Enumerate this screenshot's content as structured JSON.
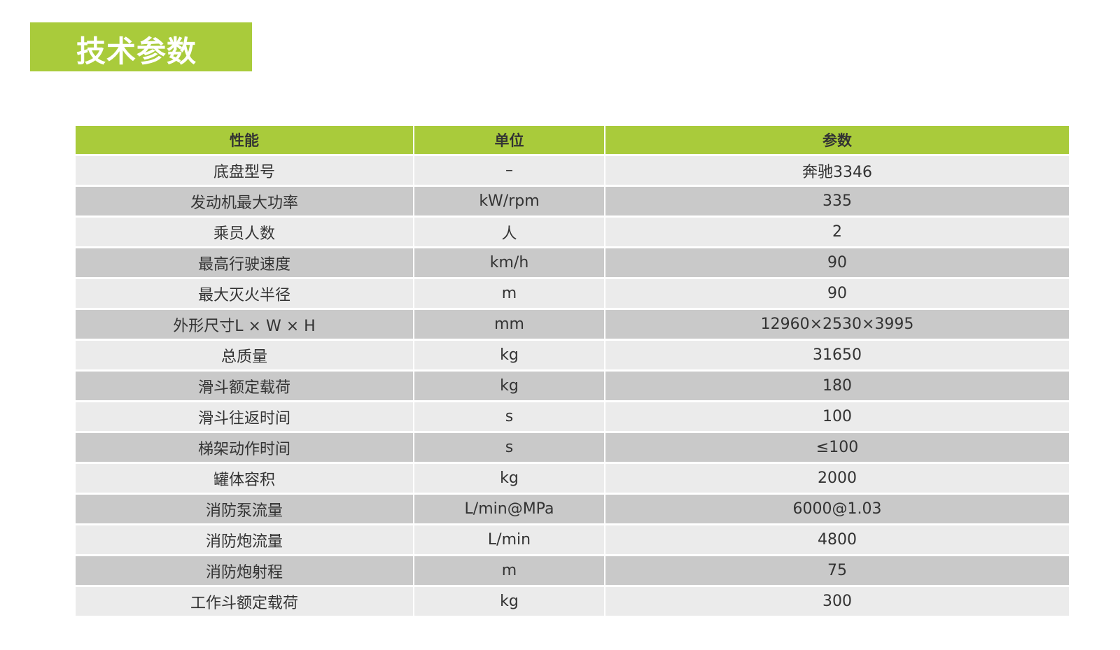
{
  "title": "技术参数",
  "colors": {
    "accent": "#a9cb3b",
    "row_light": "#ebebeb",
    "row_dark": "#c9c9c9"
  },
  "table": {
    "headers": [
      "性能",
      "单位",
      "参数"
    ],
    "rows": [
      [
        "底盘型号",
        "–",
        "奔驰3346"
      ],
      [
        "发动机最大功率",
        "kW/rpm",
        "335"
      ],
      [
        "乘员人数",
        "人",
        "2"
      ],
      [
        "最高行驶速度",
        "km/h",
        "90"
      ],
      [
        "最大灭火半径",
        "m",
        "90"
      ],
      [
        "外形尺寸L × W × H",
        "mm",
        "12960×2530×3995"
      ],
      [
        "总质量",
        "kg",
        "31650"
      ],
      [
        "滑斗额定载荷",
        "kg",
        "180"
      ],
      [
        "滑斗往返时间",
        "s",
        "100"
      ],
      [
        "梯架动作时间",
        "s",
        "≤100"
      ],
      [
        "罐体容积",
        "kg",
        "2000"
      ],
      [
        "消防泵流量",
        "L/min@MPa",
        "6000@1.03"
      ],
      [
        "消防炮流量",
        "L/min",
        "4800"
      ],
      [
        "消防炮射程",
        "m",
        "75"
      ],
      [
        "工作斗额定载荷",
        "kg",
        "300"
      ]
    ]
  }
}
